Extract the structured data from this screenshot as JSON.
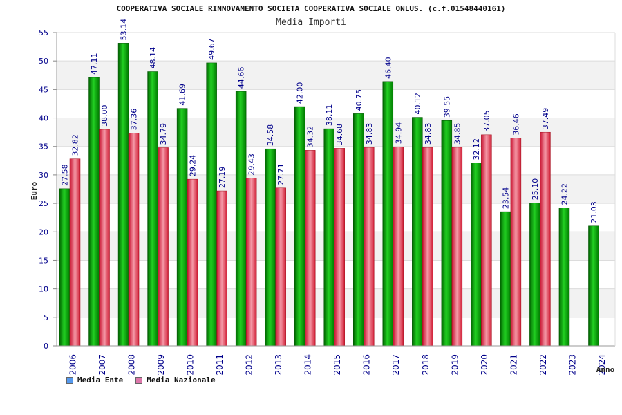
{
  "chart_data": {
    "type": "bar",
    "title": "COOPERATIVA SOCIALE RINNOVAMENTO SOCIETA COOPERATIVA SOCIALE ONLUS. (c.f.01548440161)",
    "subtitle": "Media Importi",
    "xlabel": "Anno",
    "ylabel": "Euro",
    "ylim": [
      0,
      55
    ],
    "yticks": [
      0,
      5,
      10,
      15,
      20,
      25,
      30,
      35,
      40,
      45,
      50,
      55
    ],
    "grid": true,
    "legend_position": "bottom-left",
    "categories": [
      "2006",
      "2007",
      "2008",
      "2009",
      "2010",
      "2011",
      "2012",
      "2013",
      "2014",
      "2015",
      "2016",
      "2017",
      "2018",
      "2019",
      "2020",
      "2021",
      "2022",
      "2023",
      "2024"
    ],
    "series": [
      {
        "name": "Media Ente",
        "color": "#00a000",
        "legend_color": "#5599ee",
        "values": [
          27.58,
          47.11,
          53.14,
          48.14,
          41.69,
          49.67,
          44.66,
          34.58,
          42.0,
          38.11,
          40.75,
          46.4,
          40.12,
          39.55,
          32.12,
          23.54,
          25.1,
          24.22,
          21.03
        ],
        "labels": [
          "27.58",
          "47.11",
          "53.14",
          "48.14",
          "41.69",
          "49.67",
          "44.66",
          "34.58",
          "42.00",
          "38.11",
          "40.75",
          "46.40",
          "40.12",
          "39.55",
          "32.12",
          "23.54",
          "25.10",
          "24.22",
          "21.03"
        ]
      },
      {
        "name": "Media Nazionale",
        "color": "#e8323c",
        "legend_color": "#dd77aa",
        "values": [
          32.82,
          38.0,
          37.36,
          34.79,
          29.24,
          27.19,
          29.43,
          27.71,
          34.32,
          34.68,
          34.83,
          34.94,
          34.83,
          34.85,
          37.05,
          36.46,
          37.49,
          null,
          null
        ],
        "labels": [
          "32.82",
          "38.00",
          "37.36",
          "34.79",
          "29.24",
          "27.19",
          "29.43",
          "27.71",
          "34.32",
          "34.68",
          "34.83",
          "34.94",
          "34.83",
          "34.85",
          "37.05",
          "36.46",
          "37.49",
          null,
          null
        ]
      }
    ]
  }
}
